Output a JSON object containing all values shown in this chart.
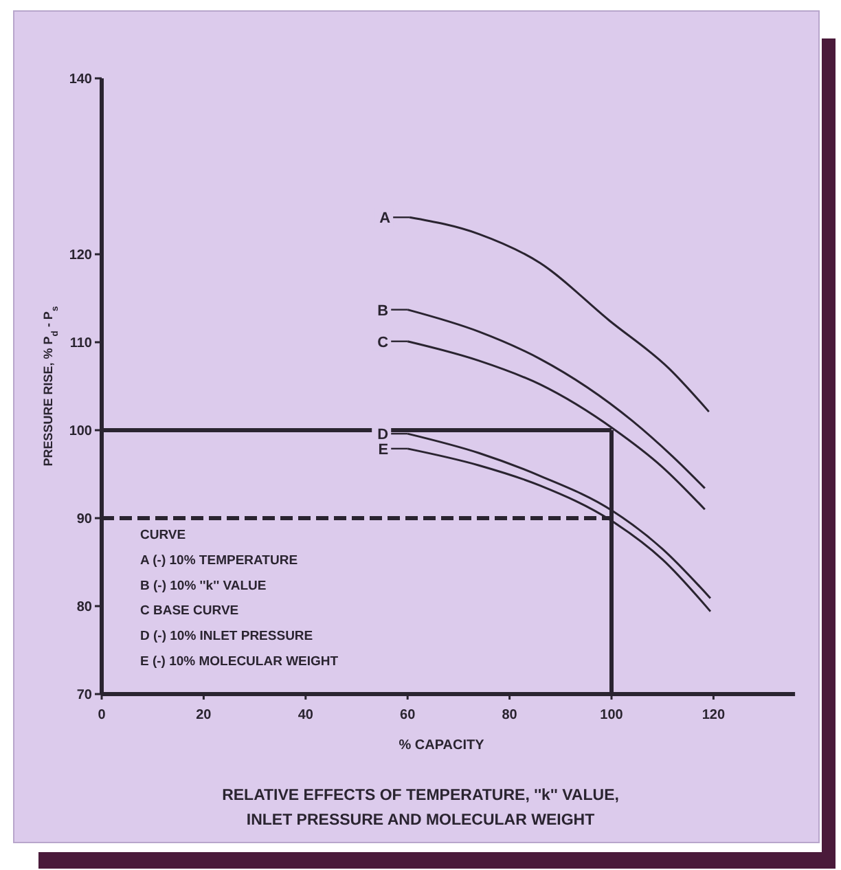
{
  "chart_data": {
    "type": "line",
    "title": "RELATIVE EFFECTS OF TEMPERATURE, ''k'' VALUE, INLET PRESSURE AND MOLECULAR WEIGHT",
    "xlabel": "% CAPACITY",
    "ylabel": "PRESSURE RISE, % P$_{d}$ - P$_{s}$",
    "xlim": [
      0,
      136
    ],
    "xticks": [
      0,
      20,
      40,
      60,
      80,
      100,
      120
    ],
    "ylim": [
      70,
      140
    ],
    "yticks": [
      70,
      80,
      90,
      100,
      110,
      120,
      140
    ],
    "grid": false,
    "legend": "top left",
    "series": [
      {
        "name": "A",
        "color": "#2a2430",
        "x": [
          60.4,
          74,
          86,
          99.5,
          111.3,
          119.1
        ],
        "values": [
          124.2,
          122.3,
          119,
          112.5,
          107,
          102.1
        ]
      },
      {
        "name": "B",
        "color": "#2a2430",
        "x": [
          60,
          74,
          86,
          104,
          112,
          118.3
        ],
        "values": [
          113.7,
          111.2,
          108.1,
          101.1,
          97,
          93.4
        ]
      },
      {
        "name": "C",
        "color": "#2a2430",
        "x": [
          60,
          74,
          86,
          100.5,
          110,
          118.3
        ],
        "values": [
          110.1,
          107.9,
          105.2,
          100.1,
          95.8,
          91
        ]
      },
      {
        "name": "D",
        "color": "#2a2430",
        "x": [
          60,
          74,
          86,
          100,
          110,
          119.4
        ],
        "values": [
          99.6,
          97.4,
          94.8,
          90.9,
          86.5,
          80.9
        ]
      },
      {
        "name": "E",
        "color": "#2a2430",
        "x": [
          60,
          74,
          86,
          100,
          110,
          119.4
        ],
        "values": [
          97.9,
          96,
          93.7,
          89.7,
          85.3,
          79.4
        ]
      }
    ],
    "ref_lines": [
      {
        "axis": "y",
        "value": 100,
        "color": "#2a2430",
        "line_style": "solid"
      },
      {
        "axis": "y",
        "value": 90,
        "color": "#2a2430",
        "line_style": "dashed"
      },
      {
        "axis": "x",
        "value": 100,
        "color": "#2a2430",
        "line_style": "solid"
      }
    ],
    "annotations": [
      "CURVE",
      "A (-) 10% TEMPERATURE",
      "B (-) 10% ''k'' VALUE",
      "C  BASE CURVE",
      "D (-) 10% INLET PRESSURE",
      "E (-) 10% MOLECULAR WEIGHT"
    ]
  }
}
